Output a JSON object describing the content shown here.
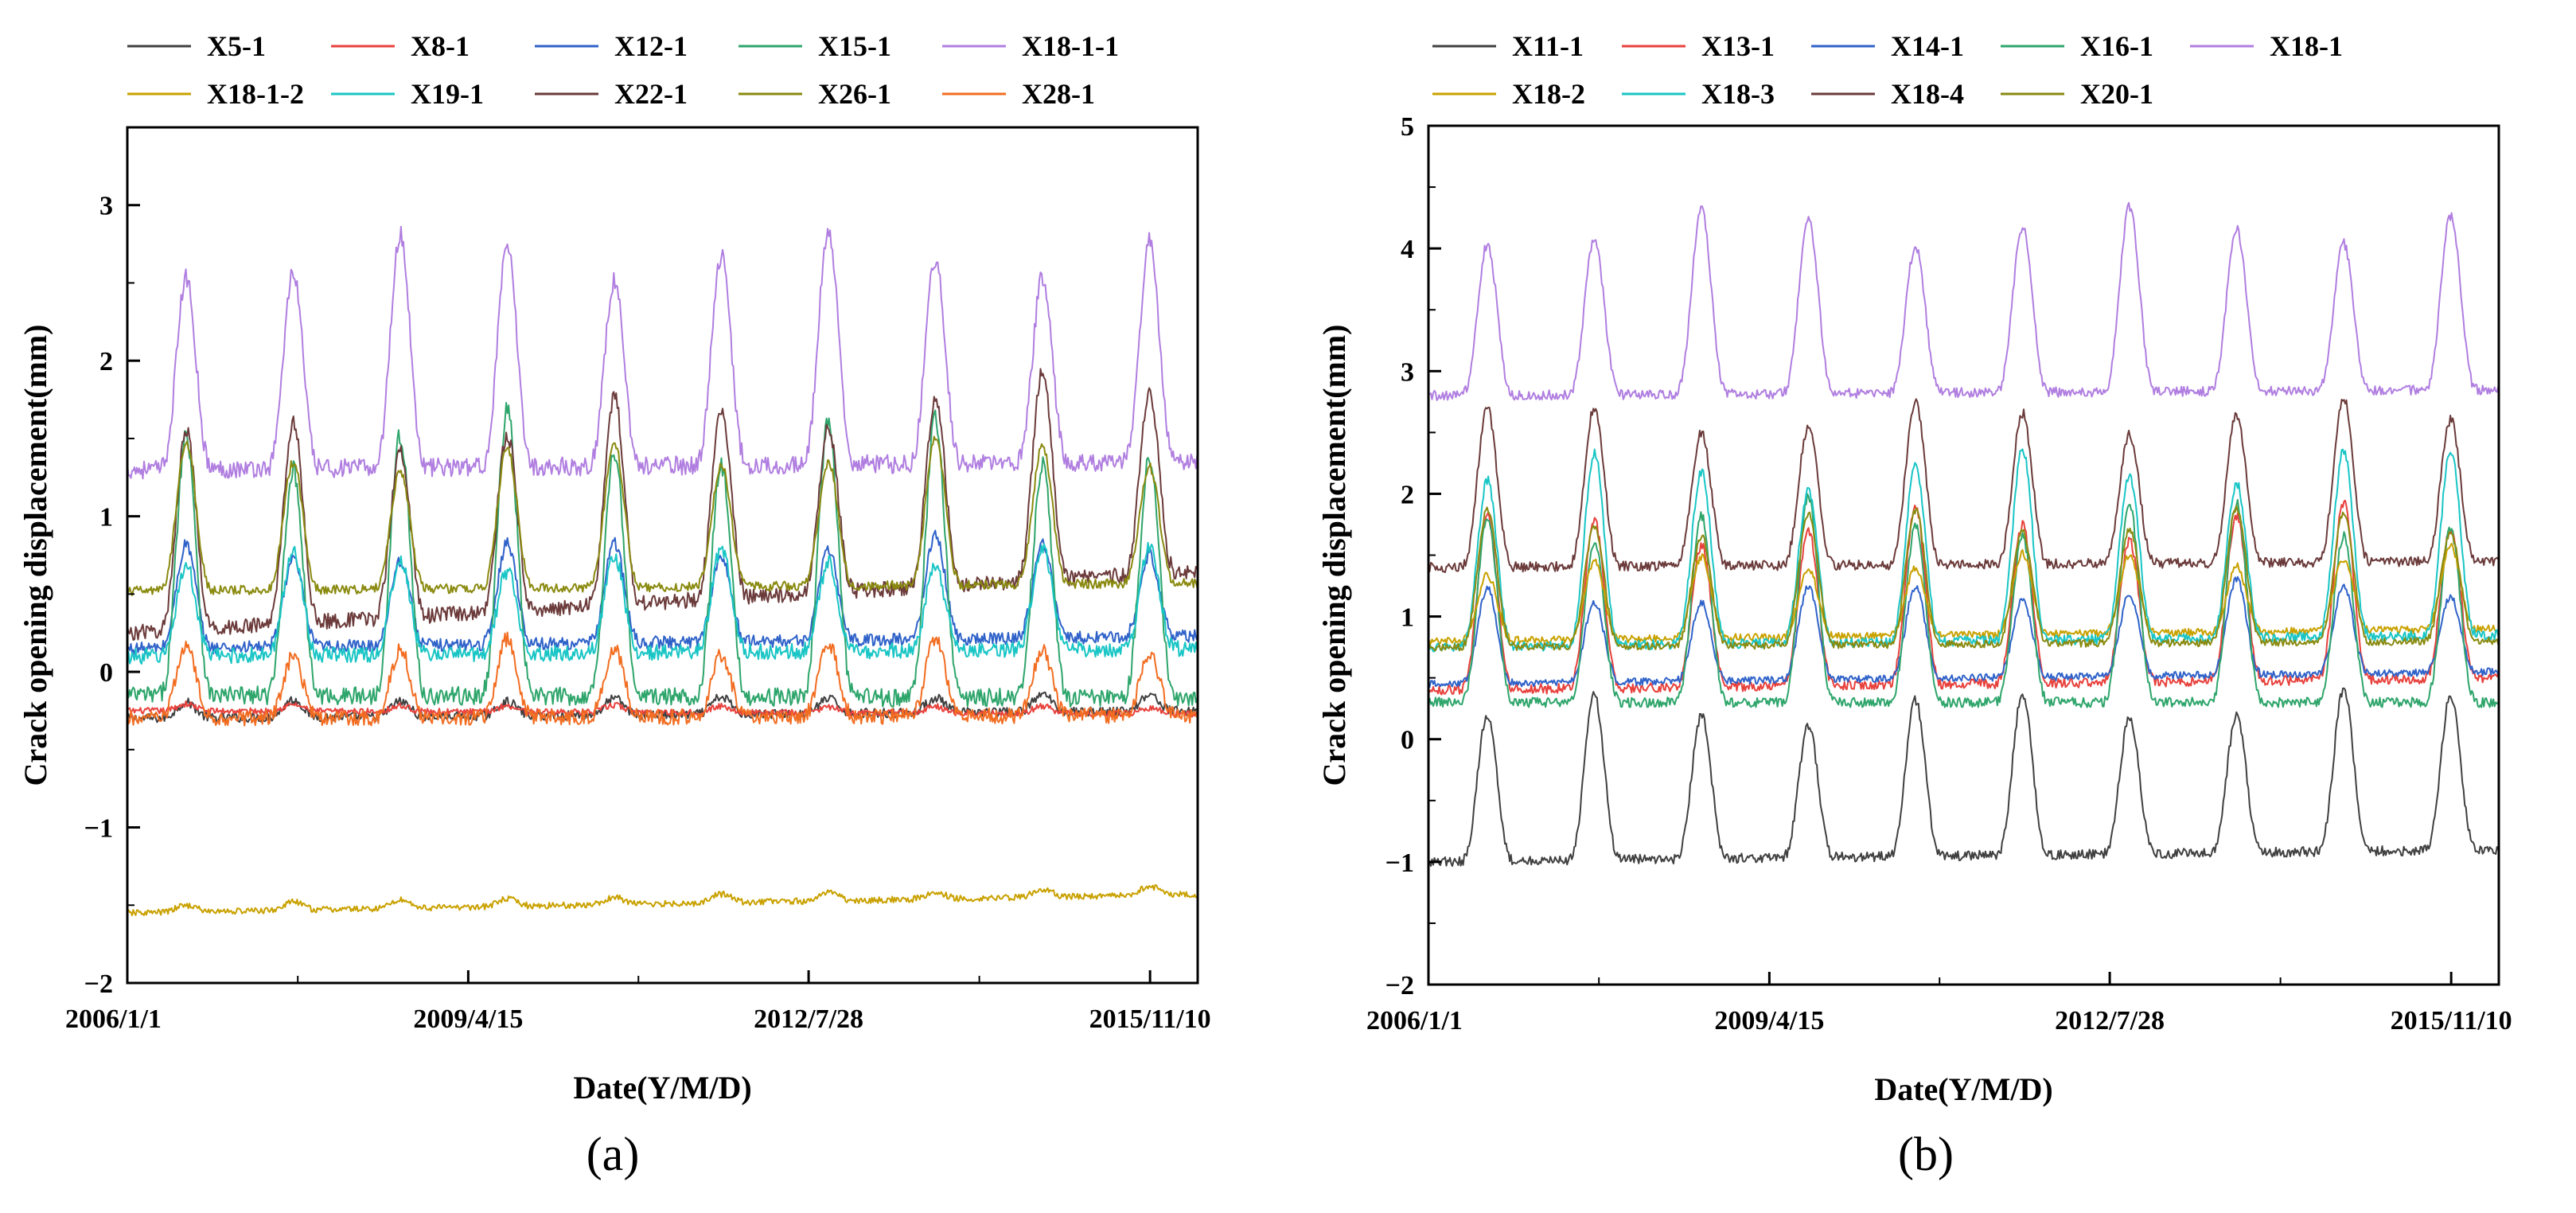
{
  "figure": {
    "panels": [
      "a",
      "b"
    ]
  },
  "chart_data": [
    {
      "id": "a",
      "type": "line",
      "panel_label": "(a)",
      "title": "",
      "xlabel": "Date(Y/M/D)",
      "ylabel": "Crack opening displacement(mm)",
      "x_ticks": [
        "2006/1/1",
        "2009/4/15",
        "2012/7/28",
        "2015/11/10"
      ],
      "y_ticks": [
        "3",
        "2",
        "1",
        "0",
        "−1",
        "−2"
      ],
      "ylim": [
        -2,
        3.5
      ],
      "years": [
        2006,
        2016
      ],
      "legend_columns": 5,
      "series": [
        {
          "name": "X5-1",
          "color": "#404040",
          "base": -0.3,
          "amp": 0.1,
          "lift": 0.05,
          "noise": 0.03
        },
        {
          "name": "X8-1",
          "color": "#e8413c",
          "base": -0.25,
          "amp": 0.04,
          "lift": -0.02,
          "noise": 0.02
        },
        {
          "name": "X12-1",
          "color": "#2f62c9",
          "base": 0.15,
          "amp": 0.6,
          "lift": 0.08,
          "noise": 0.04
        },
        {
          "name": "X15-1",
          "color": "#2ea56b",
          "base": -0.15,
          "amp": 1.65,
          "lift": -0.02,
          "noise": 0.06
        },
        {
          "name": "X18-1-1",
          "color": "#b07ee0",
          "base": 1.3,
          "amp": 1.35,
          "lift": 0.05,
          "noise": 0.06
        },
        {
          "name": "X18-1-2",
          "color": "#c9a100",
          "base": -1.55,
          "amp": 0.05,
          "lift": 0.12,
          "noise": 0.02
        },
        {
          "name": "X19-1",
          "color": "#19c5c5",
          "base": 0.1,
          "amp": 0.6,
          "lift": 0.05,
          "noise": 0.05
        },
        {
          "name": "X22-1",
          "color": "#6b3a3a",
          "base": 0.25,
          "amp": 1.2,
          "lift": 0.4,
          "noise": 0.05
        },
        {
          "name": "X26-1",
          "color": "#8a8a10",
          "base": 0.52,
          "amp": 0.85,
          "lift": 0.05,
          "noise": 0.03
        },
        {
          "name": "X28-1",
          "color": "#f26d21",
          "base": -0.3,
          "amp": 0.45,
          "lift": 0.02,
          "noise": 0.05
        }
      ]
    },
    {
      "id": "b",
      "type": "line",
      "panel_label": "(b)",
      "title": "",
      "xlabel": "Date(Y/M/D)",
      "ylabel": "Crack opening displacement(mm)",
      "x_ticks": [
        "2006/1/1",
        "2009/4/15",
        "2012/7/28",
        "2015/11/10"
      ],
      "y_ticks": [
        "5",
        "4",
        "3",
        "2",
        "1",
        "0",
        "−1",
        "−2"
      ],
      "ylim": [
        -2,
        5
      ],
      "years": [
        2006,
        2016
      ],
      "legend_columns": 5,
      "series": [
        {
          "name": "X11-1",
          "color": "#404040",
          "base": -1.0,
          "amp": 1.2,
          "lift": 0.1,
          "noise": 0.04
        },
        {
          "name": "X13-1",
          "color": "#e8413c",
          "base": 0.4,
          "amp": 1.3,
          "lift": 0.1,
          "noise": 0.04
        },
        {
          "name": "X14-1",
          "color": "#2f62c9",
          "base": 0.45,
          "amp": 0.7,
          "lift": 0.1,
          "noise": 0.03
        },
        {
          "name": "X16-1",
          "color": "#2ea56b",
          "base": 0.3,
          "amp": 1.5,
          "lift": 0.0,
          "noise": 0.04
        },
        {
          "name": "X18-1",
          "color": "#b07ee0",
          "base": 2.8,
          "amp": 1.35,
          "lift": 0.05,
          "noise": 0.04
        },
        {
          "name": "X18-2",
          "color": "#c9a100",
          "base": 0.8,
          "amp": 0.6,
          "lift": 0.1,
          "noise": 0.03
        },
        {
          "name": "X18-3",
          "color": "#19c5c5",
          "base": 0.75,
          "amp": 1.4,
          "lift": 0.1,
          "noise": 0.04
        },
        {
          "name": "X18-4",
          "color": "#6b3a3a",
          "base": 1.4,
          "amp": 1.2,
          "lift": 0.05,
          "noise": 0.04
        },
        {
          "name": "X20-1",
          "color": "#8a8a10",
          "base": 0.75,
          "amp": 1.0,
          "lift": 0.05,
          "noise": 0.03
        }
      ]
    }
  ]
}
